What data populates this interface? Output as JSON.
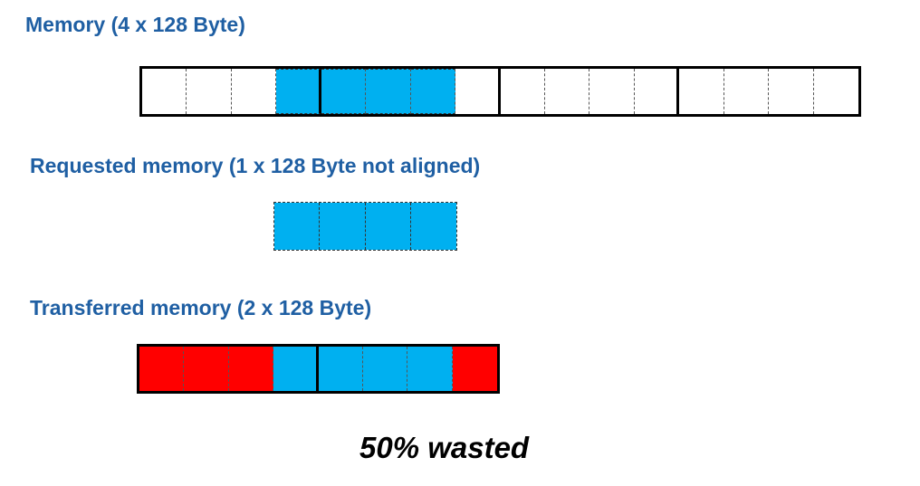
{
  "labels": {
    "memory": "Memory (4 x 128 Byte)",
    "requested": "Requested memory (1 x 128 Byte not aligned)",
    "transferred": "Transferred memory (2 x 128 Byte)"
  },
  "summary": "50% wasted",
  "colors": {
    "title": "#1f5fa3",
    "requested": "#00b0f0",
    "wasted": "#ff0000",
    "empty": "#ffffff",
    "border": "#000000"
  },
  "memory_cells": [
    "empty",
    "empty",
    "empty",
    "requested",
    "requested",
    "requested",
    "requested",
    "empty",
    "empty",
    "empty",
    "empty",
    "empty",
    "empty",
    "empty",
    "empty",
    "empty"
  ],
  "requested_cells": [
    "requested",
    "requested",
    "requested",
    "requested"
  ],
  "transferred_cells": [
    "wasted",
    "wasted",
    "wasted",
    "requested",
    "requested",
    "requested",
    "requested",
    "wasted"
  ],
  "segment_size_cells": 4
}
